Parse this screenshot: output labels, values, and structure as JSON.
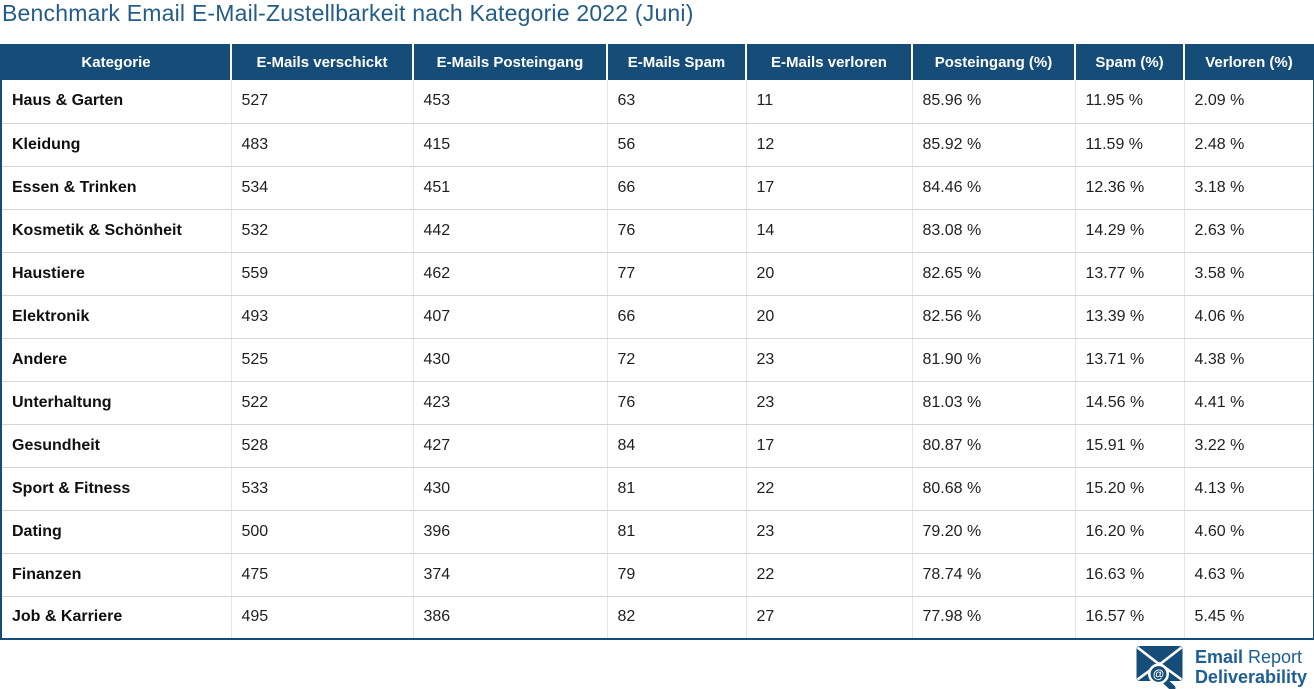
{
  "title": "Benchmark Email E-Mail-Zustellbarkeit nach Kategorie 2022 (Juni)",
  "colors": {
    "accent_dark": "#164d78",
    "title_color": "#245c88",
    "logo_text_color": "#1d5f95",
    "header_text": "#ffffff",
    "row_divider": "#d4d4d4",
    "column_divider": "#e4e4e4"
  },
  "table": {
    "columns": [
      "Kategorie",
      "E-Mails verschickt",
      "E-Mails Posteingang",
      "E-Mails Spam",
      "E-Mails verloren",
      "Posteingang (%)",
      "Spam (%)",
      "Verloren (%)"
    ],
    "rows": [
      {
        "cells": [
          "Haus & Garten",
          "527",
          "453",
          "63",
          "11",
          "85.96 %",
          "11.95 %",
          "2.09 %"
        ]
      },
      {
        "cells": [
          "Kleidung",
          "483",
          "415",
          "56",
          "12",
          "85.92 %",
          "11.59 %",
          "2.48 %"
        ]
      },
      {
        "cells": [
          "Essen & Trinken",
          "534",
          "451",
          "66",
          "17",
          "84.46 %",
          "12.36 %",
          "3.18 %"
        ]
      },
      {
        "cells": [
          "Kosmetik & Schönheit",
          "532",
          "442",
          "76",
          "14",
          "83.08 %",
          "14.29 %",
          "2.63 %"
        ]
      },
      {
        "cells": [
          "Haustiere",
          "559",
          "462",
          "77",
          "20",
          "82.65 %",
          "13.77 %",
          "3.58 %"
        ]
      },
      {
        "cells": [
          "Elektronik",
          "493",
          "407",
          "66",
          "20",
          "82.56 %",
          "13.39 %",
          "4.06 %"
        ]
      },
      {
        "cells": [
          "Andere",
          "525",
          "430",
          "72",
          "23",
          "81.90 %",
          "13.71 %",
          "4.38 %"
        ]
      },
      {
        "cells": [
          "Unterhaltung",
          "522",
          "423",
          "76",
          "23",
          "81.03 %",
          "14.56 %",
          "4.41 %"
        ]
      },
      {
        "cells": [
          "Gesundheit",
          "528",
          "427",
          "84",
          "17",
          "80.87 %",
          "15.91 %",
          "3.22 %"
        ]
      },
      {
        "cells": [
          "Sport & Fitness",
          "533",
          "430",
          "81",
          "22",
          "80.68 %",
          "15.20 %",
          "4.13 %"
        ]
      },
      {
        "cells": [
          "Dating",
          "500",
          "396",
          "81",
          "23",
          "79.20 %",
          "16.20 %",
          "4.60 %"
        ]
      },
      {
        "cells": [
          "Finanzen",
          "475",
          "374",
          "79",
          "22",
          "78.74 %",
          "16.63 %",
          "4.63 %"
        ]
      },
      {
        "cells": [
          "Job & Karriere",
          "495",
          "386",
          "82",
          "27",
          "77.98 %",
          "16.57 %",
          "5.45 %"
        ]
      }
    ]
  },
  "logo": {
    "word1": "Email",
    "word2": "Report",
    "word3": "Deliverability",
    "at_symbol": "@"
  },
  "chart_data": {
    "type": "table",
    "title": "Benchmark Email E-Mail-Zustellbarkeit nach Kategorie 2022 (Juni)",
    "categories": [
      "Haus & Garten",
      "Kleidung",
      "Essen & Trinken",
      "Kosmetik & Schönheit",
      "Haustiere",
      "Elektronik",
      "Andere",
      "Unterhaltung",
      "Gesundheit",
      "Sport & Fitness",
      "Dating",
      "Finanzen",
      "Job & Karriere"
    ],
    "series": [
      {
        "name": "E-Mails verschickt",
        "values": [
          527,
          483,
          534,
          532,
          559,
          493,
          525,
          522,
          528,
          533,
          500,
          475,
          495
        ]
      },
      {
        "name": "E-Mails Posteingang",
        "values": [
          453,
          415,
          451,
          442,
          462,
          407,
          430,
          423,
          427,
          430,
          396,
          374,
          386
        ]
      },
      {
        "name": "E-Mails Spam",
        "values": [
          63,
          56,
          66,
          76,
          77,
          66,
          72,
          76,
          84,
          81,
          81,
          79,
          82
        ]
      },
      {
        "name": "E-Mails verloren",
        "values": [
          11,
          12,
          17,
          14,
          20,
          20,
          23,
          23,
          17,
          22,
          23,
          22,
          27
        ]
      },
      {
        "name": "Posteingang (%)",
        "values": [
          85.96,
          85.92,
          84.46,
          83.08,
          82.65,
          82.56,
          81.9,
          81.03,
          80.87,
          80.68,
          79.2,
          78.74,
          77.98
        ]
      },
      {
        "name": "Spam (%)",
        "values": [
          11.95,
          11.59,
          12.36,
          14.29,
          13.77,
          13.39,
          13.71,
          14.56,
          15.91,
          15.2,
          16.2,
          16.63,
          16.57
        ]
      },
      {
        "name": "Verloren (%)",
        "values": [
          2.09,
          2.48,
          3.18,
          2.63,
          3.58,
          4.06,
          4.38,
          4.41,
          3.22,
          4.13,
          4.6,
          4.63,
          5.45
        ]
      }
    ]
  }
}
